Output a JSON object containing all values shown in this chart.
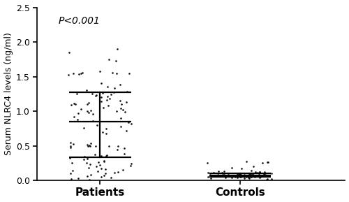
{
  "title": "",
  "ylabel": "Serum NLRC4 levels (ng/ml)",
  "xlabel": "",
  "groups": [
    "Patients",
    "Controls"
  ],
  "pvalue_text": "P<0.001",
  "ylim": [
    0,
    2.5
  ],
  "yticks": [
    0.0,
    0.5,
    1.0,
    1.5,
    2.0,
    2.5
  ],
  "patients_mean": 0.845,
  "patients_upper": 1.27,
  "patients_lower": 0.335,
  "controls_mean": 0.07,
  "controls_upper": 0.1,
  "controls_lower": 0.05,
  "dot_color": "#111111",
  "dot_size": 3.5,
  "background_color": "#ffffff",
  "patients_dots": [
    1.9,
    1.85,
    1.75,
    1.73,
    1.58,
    1.56,
    1.55,
    1.55,
    1.54,
    1.55,
    1.56,
    1.55,
    1.53,
    1.4,
    1.38,
    1.35,
    1.33,
    1.3,
    1.28,
    1.27,
    1.26,
    1.25,
    1.25,
    1.24,
    1.23,
    1.22,
    1.21,
    1.2,
    1.18,
    1.16,
    1.15,
    1.14,
    1.13,
    1.12,
    1.11,
    1.1,
    1.1,
    1.1,
    1.09,
    1.08,
    1.05,
    1.04,
    1.03,
    1.02,
    1.01,
    1.0,
    1.0,
    0.99,
    0.98,
    0.97,
    0.96,
    0.92,
    0.9,
    0.88,
    0.86,
    0.84,
    0.82,
    0.8,
    0.78,
    0.76,
    0.75,
    0.72,
    0.7,
    0.68,
    0.55,
    0.54,
    0.53,
    0.52,
    0.51,
    0.5,
    0.5,
    0.5,
    0.5,
    0.5,
    0.5,
    0.48,
    0.46,
    0.44,
    0.38,
    0.37,
    0.36,
    0.35,
    0.35,
    0.34,
    0.33,
    0.32,
    0.31,
    0.3,
    0.28,
    0.27,
    0.26,
    0.25,
    0.25,
    0.24,
    0.23,
    0.22,
    0.21,
    0.2,
    0.18,
    0.17,
    0.16,
    0.15,
    0.14,
    0.13,
    0.12,
    0.11,
    0.1,
    0.1,
    0.08,
    0.07,
    0.06,
    0.05,
    0.04,
    0.03,
    0.02,
    0.01
  ],
  "controls_dots": [
    0.27,
    0.26,
    0.26,
    0.25,
    0.25,
    0.2,
    0.18,
    0.17,
    0.14,
    0.13,
    0.13,
    0.12,
    0.12,
    0.12,
    0.12,
    0.11,
    0.11,
    0.11,
    0.11,
    0.1,
    0.1,
    0.1,
    0.1,
    0.1,
    0.1,
    0.09,
    0.09,
    0.09,
    0.09,
    0.09,
    0.09,
    0.09,
    0.08,
    0.08,
    0.08,
    0.08,
    0.08,
    0.08,
    0.07,
    0.07,
    0.07,
    0.07,
    0.07,
    0.07,
    0.07,
    0.07,
    0.06,
    0.06,
    0.06,
    0.06,
    0.06,
    0.06,
    0.06,
    0.06,
    0.05,
    0.05,
    0.05,
    0.05,
    0.05,
    0.05,
    0.05,
    0.05,
    0.05,
    0.04,
    0.04,
    0.04,
    0.04,
    0.04,
    0.03,
    0.03,
    0.03,
    0.02,
    0.02,
    0.01
  ]
}
